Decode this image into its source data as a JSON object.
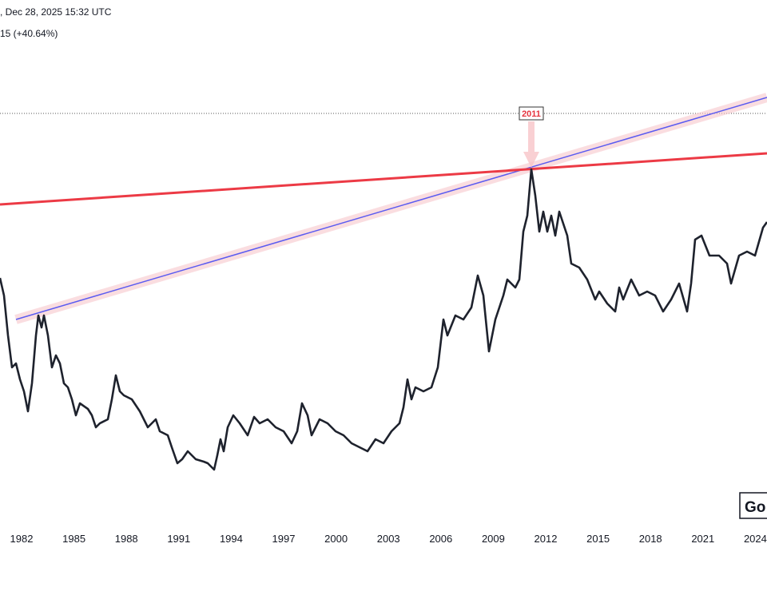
{
  "header": {
    "timestamp": ", Dec 28, 2025 15:32 UTC",
    "change": "15 (+40.64%)"
  },
  "annotation": {
    "label": "2011"
  },
  "watermark": "Go",
  "axis": {
    "labels": [
      "1982",
      "1985",
      "1988",
      "1991",
      "1994",
      "1997",
      "2000",
      "2003",
      "2006",
      "2009",
      "2012",
      "2015",
      "2018",
      "2021",
      "2024"
    ]
  }
}
